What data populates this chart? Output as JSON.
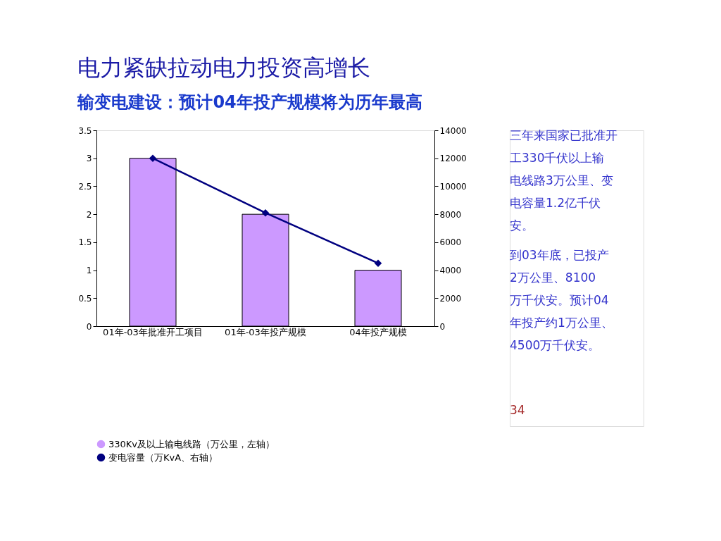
{
  "chart_data": {
    "type": "bar",
    "title": "电力紧缺拉动电力投资高增长",
    "subtitle": "输变电建设：预计04年投产规模将为历年最高",
    "categories": [
      "01年-03年批准开工项目",
      "01年-03年投产规模",
      "04年投产规模"
    ],
    "series": [
      {
        "name": "330Kv及以上输电线路（万公里，左轴）",
        "color": "#cc99ff",
        "values": [
          3,
          2,
          1
        ]
      },
      {
        "name": "变电容量（万KvA、右轴）",
        "color": "#000080",
        "values": [
          12000,
          8100,
          4500
        ],
        "type": "line",
        "axis": "y2"
      }
    ],
    "ylim": [
      0,
      3.5
    ],
    "yticks": [
      0,
      0.5,
      1,
      1.5,
      2,
      2.5,
      3,
      3.5
    ],
    "y2lim": [
      0,
      14000
    ],
    "y2ticks": [
      0,
      2000,
      4000,
      6000,
      8000,
      10000,
      12000,
      14000
    ],
    "grid": false,
    "legend": "bottom",
    "marker": "diamond",
    "annotations": [
      "三年来国家已批准开工330千伏以上输电线路3万公里、变电容量1.2亿千伏安。",
      "到03年底，已投产2万公里、8100万千伏安。预计04年投产约1万公里、4500万千伏安。",
      "34"
    ]
  }
}
